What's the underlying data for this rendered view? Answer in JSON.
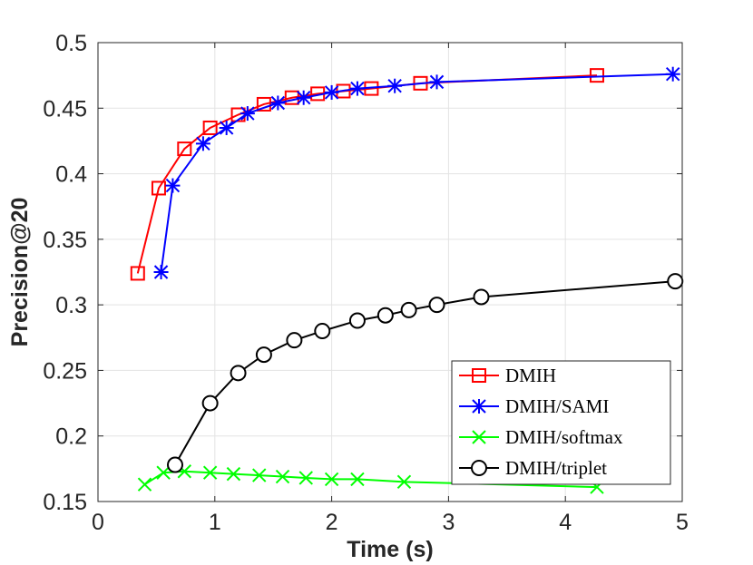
{
  "chart_data": {
    "type": "line",
    "title": "",
    "xlabel": "Time (s)",
    "ylabel": "Precision@20",
    "xlim": [
      0,
      5
    ],
    "ylim": [
      0.15,
      0.5
    ],
    "grid": true,
    "legend_position": "bottom-right",
    "xticks": [
      0,
      1,
      2,
      3,
      4,
      5
    ],
    "xtick_labels": [
      "0",
      "1",
      "2",
      "3",
      "4",
      "5"
    ],
    "yticks": [
      0.15,
      0.2,
      0.25,
      0.3,
      0.35,
      0.4,
      0.45,
      0.5
    ],
    "ytick_labels": [
      "0.15",
      "0.2",
      "0.25",
      "0.3",
      "0.35",
      "0.4",
      "0.45",
      "0.5"
    ],
    "series": [
      {
        "name": "DMIH",
        "color": "#ff0000",
        "marker": "square",
        "x": [
          0.34,
          0.52,
          0.74,
          0.96,
          1.2,
          1.42,
          1.66,
          1.88,
          2.1,
          2.34,
          2.76,
          4.27
        ],
        "y": [
          0.324,
          0.389,
          0.419,
          0.435,
          0.445,
          0.453,
          0.458,
          0.461,
          0.463,
          0.465,
          0.469,
          0.475
        ]
      },
      {
        "name": "DMIH/SAMI",
        "color": "#0000ff",
        "marker": "star",
        "x": [
          0.54,
          0.64,
          0.9,
          1.1,
          1.28,
          1.54,
          1.76,
          2.0,
          2.22,
          2.54,
          2.9,
          4.92
        ],
        "y": [
          0.325,
          0.391,
          0.423,
          0.435,
          0.446,
          0.454,
          0.458,
          0.462,
          0.465,
          0.467,
          0.47,
          0.476
        ]
      },
      {
        "name": "DMIH/softmax",
        "color": "#00ff00",
        "marker": "x",
        "x": [
          0.4,
          0.56,
          0.74,
          0.96,
          1.16,
          1.38,
          1.58,
          1.78,
          2.0,
          2.22,
          2.62,
          4.27
        ],
        "y": [
          0.163,
          0.172,
          0.173,
          0.172,
          0.171,
          0.17,
          0.169,
          0.168,
          0.167,
          0.167,
          0.165,
          0.161
        ]
      },
      {
        "name": "DMIH/triplet",
        "color": "#000000",
        "marker": "circle",
        "x": [
          0.66,
          0.96,
          1.2,
          1.42,
          1.68,
          1.92,
          2.22,
          2.46,
          2.66,
          2.9,
          3.28,
          4.94
        ],
        "y": [
          0.178,
          0.225,
          0.248,
          0.262,
          0.273,
          0.28,
          0.288,
          0.292,
          0.296,
          0.3,
          0.306,
          0.318
        ]
      }
    ]
  }
}
